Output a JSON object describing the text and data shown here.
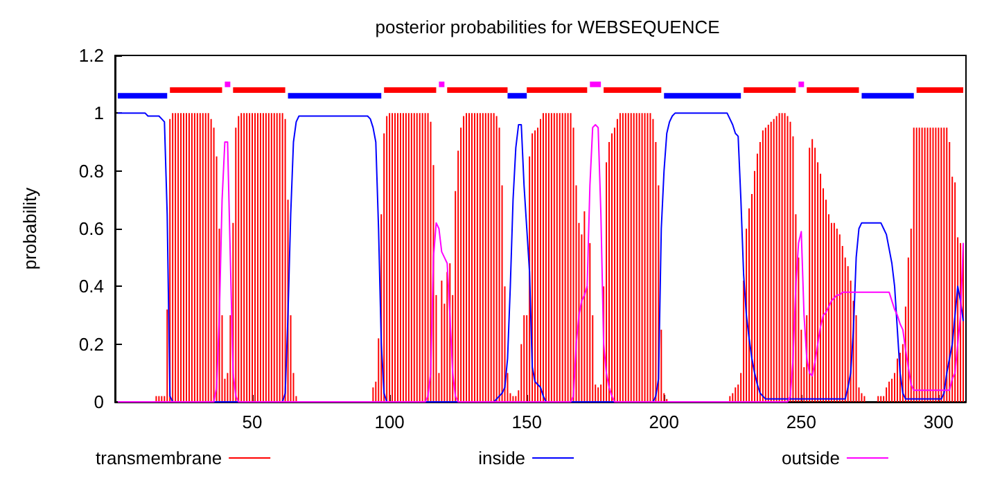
{
  "chart_data": {
    "type": "bar",
    "title": "posterior probabilities for WEBSEQUENCE",
    "ylabel": "probability",
    "x": [
      1,
      2,
      3,
      4,
      5,
      6,
      7,
      8,
      9,
      10,
      11,
      12,
      13,
      14,
      15,
      16,
      17,
      18,
      19,
      20,
      21,
      22,
      23,
      24,
      25,
      26,
      27,
      28,
      29,
      30,
      31,
      32,
      33,
      34,
      35,
      36,
      37,
      38,
      39,
      40,
      41,
      42,
      43,
      44,
      45,
      46,
      47,
      48,
      49,
      50,
      51,
      52,
      53,
      54,
      55,
      56,
      57,
      58,
      59,
      60,
      61,
      62,
      63,
      64,
      65,
      66,
      67,
      68,
      69,
      70,
      71,
      72,
      73,
      74,
      75,
      76,
      77,
      78,
      79,
      80,
      81,
      82,
      83,
      84,
      85,
      86,
      87,
      88,
      89,
      90,
      91,
      92,
      93,
      94,
      95,
      96,
      97,
      98,
      99,
      100,
      101,
      102,
      103,
      104,
      105,
      106,
      107,
      108,
      109,
      110,
      111,
      112,
      113,
      114,
      115,
      116,
      117,
      118,
      119,
      120,
      121,
      122,
      123,
      124,
      125,
      126,
      127,
      128,
      129,
      130,
      131,
      132,
      133,
      134,
      135,
      136,
      137,
      138,
      139,
      140,
      141,
      142,
      143,
      144,
      145,
      146,
      147,
      148,
      149,
      150,
      151,
      152,
      153,
      154,
      155,
      156,
      157,
      158,
      159,
      160,
      161,
      162,
      163,
      164,
      165,
      166,
      167,
      168,
      169,
      170,
      171,
      172,
      173,
      174,
      175,
      176,
      177,
      178,
      179,
      180,
      181,
      182,
      183,
      184,
      185,
      186,
      187,
      188,
      189,
      190,
      191,
      192,
      193,
      194,
      195,
      196,
      197,
      198,
      199,
      200,
      201,
      202,
      203,
      204,
      205,
      206,
      207,
      208,
      209,
      210,
      211,
      212,
      213,
      214,
      215,
      216,
      217,
      218,
      219,
      220,
      221,
      222,
      223,
      224,
      225,
      226,
      227,
      228,
      229,
      230,
      231,
      232,
      233,
      234,
      235,
      236,
      237,
      238,
      239,
      240,
      241,
      242,
      243,
      244,
      245,
      246,
      247,
      248,
      249,
      250,
      251,
      252,
      253,
      254,
      255,
      256,
      257,
      258,
      259,
      260,
      261,
      262,
      263,
      264,
      265,
      266,
      267,
      268,
      269,
      270,
      271,
      272,
      273,
      274,
      275,
      276,
      277,
      278,
      279,
      280,
      281,
      282,
      283,
      284,
      285,
      286,
      287,
      288,
      289,
      290,
      291,
      292,
      293,
      294,
      295,
      296,
      297,
      298,
      299,
      300,
      301,
      302,
      303,
      304,
      305,
      306,
      307,
      308,
      309
    ],
    "series": [
      {
        "name": "transmembrane",
        "color": "#ff0000",
        "values": [
          0,
          0,
          0,
          0,
          0,
          0,
          0,
          0,
          0,
          0,
          0,
          0,
          0,
          0,
          0.02,
          0.02,
          0.02,
          0.02,
          0.32,
          0.98,
          1,
          1,
          1,
          1,
          1,
          1,
          1,
          1,
          1,
          1,
          1,
          1,
          1,
          1,
          0.98,
          0.95,
          0.85,
          0.6,
          0.3,
          0.08,
          0.1,
          0.3,
          0.62,
          0.95,
          0.99,
          1,
          1,
          1,
          1,
          1,
          1,
          1,
          1,
          1,
          1,
          1,
          1,
          1,
          1,
          1,
          1,
          0.98,
          0.7,
          0.3,
          0.1,
          0.02,
          0,
          0,
          0,
          0,
          0,
          0,
          0,
          0,
          0,
          0,
          0,
          0,
          0,
          0,
          0,
          0,
          0,
          0,
          0,
          0,
          0,
          0,
          0,
          0,
          0,
          0,
          0,
          0.05,
          0.07,
          0.22,
          0.65,
          0.93,
          0.99,
          1,
          1,
          1,
          1,
          1,
          1,
          1,
          1,
          1,
          1,
          1,
          1,
          1,
          1,
          1,
          0.97,
          0.82,
          0.37,
          0.1,
          0.42,
          0.34,
          0.45,
          0.48,
          0.37,
          0.73,
          0.87,
          0.95,
          0.99,
          1,
          1,
          1,
          1,
          1,
          1,
          1,
          1,
          1,
          1,
          1,
          0.99,
          0.95,
          0.75,
          0.4,
          0.1,
          0.03,
          0.02,
          0.02,
          0.04,
          0.2,
          0.3,
          0.3,
          0.85,
          0.93,
          0.94,
          0.95,
          0.98,
          1,
          1,
          1,
          1,
          1,
          1,
          1,
          1,
          1,
          1,
          1,
          0.95,
          0.75,
          0.62,
          0.58,
          0.66,
          0.4,
          0.55,
          0.3,
          0.06,
          0.05,
          0.06,
          0.4,
          0.83,
          0.9,
          0.93,
          0.95,
          0.98,
          1,
          1,
          1,
          1,
          1,
          1,
          1,
          1,
          1,
          1,
          1,
          1,
          0.98,
          0.9,
          0.75,
          0.25,
          0.03,
          0.01,
          0,
          0,
          0,
          0,
          0,
          0,
          0,
          0,
          0,
          0,
          0,
          0,
          0,
          0,
          0,
          0,
          0,
          0,
          0,
          0,
          0,
          0,
          0.02,
          0.03,
          0.05,
          0.06,
          0.1,
          0.42,
          0.6,
          0.67,
          0.72,
          0.8,
          0.86,
          0.9,
          0.94,
          0.95,
          0.96,
          0.97,
          0.98,
          0.99,
          1,
          1,
          1,
          0.99,
          0.97,
          0.92,
          0.65,
          0.5,
          0.25,
          0.12,
          0.3,
          0.88,
          0.91,
          0.88,
          0.83,
          0.79,
          0.74,
          0.7,
          0.65,
          0.62,
          0.62,
          0.6,
          0.58,
          0.54,
          0.5,
          0.47,
          0.42,
          0.35,
          0.3,
          0.05,
          0.03,
          0.02,
          0,
          0,
          0,
          0,
          0.02,
          0.02,
          0.02,
          0.05,
          0.07,
          0.08,
          0.1,
          0.15,
          0.17,
          0.2,
          0.33,
          0.5,
          0.6,
          0.95,
          0.95,
          0.95,
          0.95,
          0.95,
          0.95,
          0.95,
          0.95,
          0.95,
          0.95,
          0.95,
          0.95,
          0.95,
          0.9,
          0.78,
          0.76,
          0.57,
          0.55,
          0.55
        ]
      },
      {
        "name": "inside",
        "type": "line",
        "color": "#0000ff",
        "values": [
          1,
          1,
          1,
          1,
          1,
          1,
          1,
          1,
          1,
          1,
          1,
          0.99,
          0.99,
          0.99,
          0.99,
          0.99,
          0.98,
          0.97,
          0.65,
          0.02,
          0,
          0,
          0,
          0,
          0,
          0,
          0,
          0,
          0,
          0,
          0,
          0,
          0,
          0,
          0,
          0,
          0,
          0,
          0,
          0,
          0,
          0,
          0,
          0,
          0,
          0,
          0,
          0,
          0,
          0,
          0,
          0,
          0,
          0,
          0,
          0,
          0,
          0,
          0,
          0,
          0,
          0.03,
          0.3,
          0.65,
          0.9,
          0.97,
          0.99,
          0.99,
          0.99,
          0.99,
          0.99,
          0.99,
          0.99,
          0.99,
          0.99,
          0.99,
          0.99,
          0.99,
          0.99,
          0.99,
          0.99,
          0.99,
          0.99,
          0.99,
          0.99,
          0.99,
          0.99,
          0.99,
          0.99,
          0.99,
          0.99,
          0.99,
          0.98,
          0.95,
          0.9,
          0.6,
          0.2,
          0.03,
          0,
          0,
          0,
          0,
          0,
          0,
          0,
          0,
          0,
          0,
          0,
          0,
          0,
          0,
          0,
          0,
          0,
          0,
          0,
          0,
          0,
          0,
          0,
          0,
          0,
          0,
          0,
          0,
          0,
          0,
          0,
          0,
          0,
          0,
          0,
          0,
          0,
          0,
          0,
          0,
          0.01,
          0.02,
          0.03,
          0.05,
          0.15,
          0.4,
          0.7,
          0.88,
          0.96,
          0.96,
          0.75,
          0.6,
          0.45,
          0.12,
          0.07,
          0.06,
          0.05,
          0.02,
          0,
          0,
          0,
          0,
          0,
          0,
          0,
          0,
          0,
          0,
          0,
          0,
          0,
          0,
          0,
          0,
          0,
          0,
          0,
          0,
          0,
          0,
          0,
          0,
          0,
          0,
          0,
          0,
          0,
          0,
          0,
          0,
          0,
          0,
          0,
          0,
          0,
          0,
          0,
          0,
          0.02,
          0.08,
          0.6,
          0.8,
          0.93,
          0.97,
          0.99,
          1,
          1,
          1,
          1,
          1,
          1,
          1,
          1,
          1,
          1,
          1,
          1,
          1,
          1,
          1,
          1,
          1,
          1,
          1,
          1,
          0.98,
          0.96,
          0.93,
          0.92,
          0.7,
          0.44,
          0.3,
          0.22,
          0.15,
          0.1,
          0.06,
          0.03,
          0.02,
          0.01,
          0.01,
          0.01,
          0.01,
          0.01,
          0.01,
          0.01,
          0.01,
          0.01,
          0.01,
          0.01,
          0.01,
          0.01,
          0.01,
          0.01,
          0.01,
          0.01,
          0.01,
          0.01,
          0.01,
          0.01,
          0.01,
          0.01,
          0.01,
          0.01,
          0.01,
          0.01,
          0.01,
          0.01,
          0.01,
          0.05,
          0.1,
          0.25,
          0.5,
          0.6,
          0.62,
          0.62,
          0.62,
          0.62,
          0.62,
          0.62,
          0.62,
          0.62,
          0.6,
          0.58,
          0.53,
          0.48,
          0.4,
          0.25,
          0.1,
          0.03,
          0.01,
          0.01,
          0.01,
          0.01,
          0.01,
          0.01,
          0.01,
          0.01,
          0.01,
          0.01,
          0.01,
          0.01,
          0.01,
          0.01,
          0.03,
          0.1,
          0.15,
          0.2,
          0.3,
          0.4,
          0.35,
          0.28
        ]
      },
      {
        "name": "outside",
        "type": "line",
        "color": "#ff00ff",
        "values": [
          0,
          0,
          0,
          0,
          0,
          0,
          0,
          0,
          0,
          0,
          0,
          0,
          0,
          0,
          0,
          0,
          0,
          0,
          0,
          0,
          0,
          0,
          0,
          0,
          0,
          0,
          0,
          0,
          0,
          0,
          0,
          0,
          0,
          0,
          0,
          0,
          0.05,
          0.3,
          0.7,
          0.9,
          0.9,
          0.5,
          0.1,
          0.02,
          0,
          0,
          0,
          0,
          0,
          0,
          0,
          0,
          0,
          0,
          0,
          0,
          0,
          0,
          0,
          0,
          0,
          0,
          0,
          0,
          0,
          0,
          0,
          0,
          0,
          0,
          0,
          0,
          0,
          0,
          0,
          0,
          0,
          0,
          0,
          0,
          0,
          0,
          0,
          0,
          0,
          0,
          0,
          0,
          0,
          0,
          0,
          0,
          0,
          0,
          0,
          0,
          0,
          0,
          0,
          0,
          0,
          0,
          0,
          0,
          0,
          0,
          0,
          0,
          0,
          0,
          0,
          0,
          0,
          0.02,
          0.1,
          0.5,
          0.62,
          0.6,
          0.52,
          0.5,
          0.48,
          0.3,
          0.1,
          0.02,
          0,
          0,
          0,
          0,
          0,
          0,
          0,
          0,
          0,
          0,
          0,
          0,
          0,
          0,
          0,
          0,
          0,
          0,
          0,
          0,
          0,
          0,
          0,
          0,
          0,
          0,
          0,
          0,
          0,
          0,
          0,
          0,
          0,
          0,
          0,
          0,
          0,
          0,
          0,
          0,
          0,
          0,
          0.02,
          0.2,
          0.3,
          0.35,
          0.37,
          0.4,
          0.75,
          0.95,
          0.96,
          0.95,
          0.65,
          0.2,
          0.1,
          0.05,
          0.02,
          0,
          0,
          0,
          0,
          0,
          0,
          0,
          0,
          0,
          0,
          0,
          0,
          0,
          0,
          0,
          0,
          0,
          0,
          0,
          0,
          0,
          0,
          0,
          0,
          0,
          0,
          0,
          0,
          0,
          0,
          0,
          0,
          0,
          0,
          0,
          0,
          0,
          0,
          0,
          0,
          0,
          0,
          0,
          0,
          0,
          0,
          0,
          0,
          0,
          0,
          0,
          0,
          0,
          0,
          0,
          0,
          0,
          0,
          0,
          0,
          0,
          0,
          0,
          0,
          0.02,
          0.15,
          0.4,
          0.55,
          0.59,
          0.3,
          0.15,
          0.1,
          0.09,
          0.14,
          0.2,
          0.26,
          0.3,
          0.31,
          0.33,
          0.35,
          0.36,
          0.37,
          0.37,
          0.38,
          0.38,
          0.38,
          0.38,
          0.38,
          0.38,
          0.38,
          0.38,
          0.38,
          0.38,
          0.38,
          0.38,
          0.38,
          0.38,
          0.38,
          0.38,
          0.38,
          0.38,
          0.35,
          0.32,
          0.3,
          0.27,
          0.25,
          0.18,
          0.12,
          0.06,
          0.04,
          0.04,
          0.04,
          0.04,
          0.04,
          0.04,
          0.04,
          0.04,
          0.04,
          0.04,
          0.04,
          0.04,
          0.04,
          0.04,
          0.08,
          0.1,
          0.2,
          0.3,
          0.55
        ]
      },
      {
        "type": "line",
        "color": "#0000ff",
        "values": [
          1.06,
          1.06,
          1.06,
          1.06,
          1.06,
          1.06,
          1.06,
          1.06,
          1.06,
          1.06,
          1.06,
          1.06,
          1.06,
          1.06,
          1.06,
          1.06,
          1.06,
          1.06,
          1.06,
          null,
          null,
          null,
          null,
          null,
          null,
          null,
          null,
          null,
          null,
          null,
          null,
          null,
          null,
          null,
          null,
          null,
          null,
          null,
          null,
          null,
          null,
          null,
          null,
          null,
          null,
          null,
          null,
          null,
          null,
          null,
          null,
          null,
          null,
          null,
          null,
          null,
          null,
          null,
          null,
          null,
          null,
          null,
          1.06,
          1.06,
          1.06,
          1.06,
          1.06,
          1.06,
          1.06,
          1.06,
          1.06,
          1.06,
          1.06,
          1.06,
          1.06,
          1.06,
          1.06,
          1.06,
          1.06,
          1.06,
          1.06,
          1.06,
          1.06,
          1.06,
          1.06,
          1.06,
          1.06,
          1.06,
          1.06,
          1.06,
          1.06,
          1.06,
          1.06,
          1.06,
          1.06,
          1.06,
          1.06,
          null,
          null,
          null,
          null,
          null,
          null,
          null,
          null,
          null,
          null,
          null,
          null,
          null,
          null,
          null,
          null,
          null,
          null,
          null,
          null,
          null,
          null,
          null,
          null,
          null,
          null,
          null,
          null,
          null,
          null,
          null,
          null,
          null,
          null,
          null,
          null,
          null,
          null,
          null,
          null,
          null,
          null,
          null,
          null,
          null,
          1.06,
          1.06,
          1.06,
          1.06,
          1.06,
          1.06,
          1.06,
          1.06,
          null,
          null,
          null,
          null,
          null,
          null,
          null,
          null,
          null,
          null,
          null,
          null,
          null,
          null,
          null,
          null,
          null,
          null,
          null,
          null,
          null,
          null,
          null,
          null,
          null,
          null,
          null,
          null,
          null,
          null,
          null,
          null,
          null,
          null,
          null,
          null,
          null,
          null,
          null,
          null,
          null,
          null,
          null,
          null,
          null,
          null,
          null,
          null,
          null,
          1.06,
          1.06,
          1.06,
          1.06,
          1.06,
          1.06,
          1.06,
          1.06,
          1.06,
          1.06,
          1.06,
          1.06,
          1.06,
          1.06,
          1.06,
          1.06,
          1.06,
          1.06,
          1.06,
          1.06,
          1.06,
          1.06,
          1.06,
          1.06,
          1.06,
          1.06,
          1.06,
          1.06,
          1.06,
          null,
          null,
          null,
          null,
          null,
          null,
          null,
          null,
          null,
          null,
          null,
          null,
          null,
          null,
          null,
          null,
          null,
          null,
          null,
          null,
          null,
          null,
          null,
          null,
          null,
          null,
          null,
          null,
          null,
          null,
          null,
          null,
          null,
          null,
          null,
          null,
          null,
          null,
          null,
          null,
          null,
          null,
          null,
          1.06,
          1.06,
          1.06,
          1.06,
          1.06,
          1.06,
          1.06,
          1.06,
          1.06,
          1.06,
          1.06,
          1.06,
          1.06,
          1.06,
          1.06,
          1.06,
          1.06,
          1.06,
          1.06,
          1.06,
          null,
          null,
          null,
          null,
          null,
          null,
          null,
          null,
          null,
          null,
          null,
          null,
          null,
          null,
          null,
          null,
          null,
          null
        ]
      },
      {
        "type": "line",
        "color": "#ff0000",
        "values": [
          null,
          null,
          null,
          null,
          null,
          null,
          null,
          null,
          null,
          null,
          null,
          null,
          null,
          null,
          null,
          null,
          null,
          null,
          null,
          1.08,
          1.08,
          1.08,
          1.08,
          1.08,
          1.08,
          1.08,
          1.08,
          1.08,
          1.08,
          1.08,
          1.08,
          1.08,
          1.08,
          1.08,
          1.08,
          1.08,
          1.08,
          1.08,
          1.08,
          null,
          null,
          null,
          1.08,
          1.08,
          1.08,
          1.08,
          1.08,
          1.08,
          1.08,
          1.08,
          1.08,
          1.08,
          1.08,
          1.08,
          1.08,
          1.08,
          1.08,
          1.08,
          1.08,
          1.08,
          1.08,
          1.08,
          null,
          null,
          null,
          null,
          null,
          null,
          null,
          null,
          null,
          null,
          null,
          null,
          null,
          null,
          null,
          null,
          null,
          null,
          null,
          null,
          null,
          null,
          null,
          null,
          null,
          null,
          null,
          null,
          null,
          null,
          null,
          null,
          null,
          null,
          null,
          1.08,
          1.08,
          1.08,
          1.08,
          1.08,
          1.08,
          1.08,
          1.08,
          1.08,
          1.08,
          1.08,
          1.08,
          1.08,
          1.08,
          1.08,
          1.08,
          1.08,
          1.08,
          1.08,
          1.08,
          null,
          null,
          null,
          1.08,
          1.08,
          1.08,
          1.08,
          1.08,
          1.08,
          1.08,
          1.08,
          1.08,
          1.08,
          1.08,
          1.08,
          1.08,
          1.08,
          1.08,
          1.08,
          1.08,
          1.08,
          1.08,
          1.08,
          1.08,
          1.08,
          1.08,
          null,
          null,
          null,
          null,
          null,
          null,
          1.08,
          1.08,
          1.08,
          1.08,
          1.08,
          1.08,
          1.08,
          1.08,
          1.08,
          1.08,
          1.08,
          1.08,
          1.08,
          1.08,
          1.08,
          1.08,
          1.08,
          1.08,
          1.08,
          1.08,
          1.08,
          1.08,
          1.08,
          null,
          null,
          null,
          null,
          null,
          1.08,
          1.08,
          1.08,
          1.08,
          1.08,
          1.08,
          1.08,
          1.08,
          1.08,
          1.08,
          1.08,
          1.08,
          1.08,
          1.08,
          1.08,
          1.08,
          1.08,
          1.08,
          1.08,
          1.08,
          1.08,
          1.08,
          null,
          null,
          null,
          null,
          null,
          null,
          null,
          null,
          null,
          null,
          null,
          null,
          null,
          null,
          null,
          null,
          null,
          null,
          null,
          null,
          null,
          null,
          null,
          null,
          null,
          null,
          null,
          null,
          null,
          1.08,
          1.08,
          1.08,
          1.08,
          1.08,
          1.08,
          1.08,
          1.08,
          1.08,
          1.08,
          1.08,
          1.08,
          1.08,
          1.08,
          1.08,
          1.08,
          1.08,
          1.08,
          1.08,
          1.08,
          null,
          null,
          null,
          1.08,
          1.08,
          1.08,
          1.08,
          1.08,
          1.08,
          1.08,
          1.08,
          1.08,
          1.08,
          1.08,
          1.08,
          1.08,
          1.08,
          1.08,
          1.08,
          1.08,
          1.08,
          1.08,
          1.08,
          null,
          null,
          null,
          null,
          null,
          null,
          null,
          null,
          null,
          null,
          null,
          null,
          null,
          null,
          null,
          null,
          null,
          null,
          null,
          null,
          1.08,
          1.08,
          1.08,
          1.08,
          1.08,
          1.08,
          1.08,
          1.08,
          1.08,
          1.08,
          1.08,
          1.08,
          1.08,
          1.08,
          1.08,
          1.08,
          1.08,
          1.08
        ]
      },
      {
        "type": "line",
        "color": "#ff00ff",
        "values": [
          null,
          null,
          null,
          null,
          null,
          null,
          null,
          null,
          null,
          null,
          null,
          null,
          null,
          null,
          null,
          null,
          null,
          null,
          null,
          null,
          null,
          null,
          null,
          null,
          null,
          null,
          null,
          null,
          null,
          null,
          null,
          null,
          null,
          null,
          null,
          null,
          null,
          null,
          null,
          1.1,
          1.1,
          1.1,
          null,
          null,
          null,
          null,
          null,
          null,
          null,
          null,
          null,
          null,
          null,
          null,
          null,
          null,
          null,
          null,
          null,
          null,
          null,
          null,
          null,
          null,
          null,
          null,
          null,
          null,
          null,
          null,
          null,
          null,
          null,
          null,
          null,
          null,
          null,
          null,
          null,
          null,
          null,
          null,
          null,
          null,
          null,
          null,
          null,
          null,
          null,
          null,
          null,
          null,
          null,
          null,
          null,
          null,
          null,
          null,
          null,
          null,
          null,
          null,
          null,
          null,
          null,
          null,
          null,
          null,
          null,
          null,
          null,
          null,
          null,
          null,
          null,
          null,
          null,
          1.1,
          1.1,
          1.1,
          null,
          null,
          null,
          null,
          null,
          null,
          null,
          null,
          null,
          null,
          null,
          null,
          null,
          null,
          null,
          null,
          null,
          null,
          null,
          null,
          null,
          null,
          null,
          null,
          null,
          null,
          null,
          null,
          null,
          null,
          null,
          null,
          null,
          null,
          null,
          null,
          null,
          null,
          null,
          null,
          null,
          null,
          null,
          null,
          null,
          null,
          null,
          null,
          null,
          null,
          null,
          null,
          1.1,
          1.1,
          1.1,
          1.1,
          1.1,
          null,
          null,
          null,
          null,
          null,
          null,
          null,
          null,
          null,
          null,
          null,
          null,
          null,
          null,
          null,
          null,
          null,
          null,
          null,
          null,
          null,
          null,
          null,
          null,
          null,
          null,
          null,
          null,
          null,
          null,
          null,
          null,
          null,
          null,
          null,
          null,
          null,
          null,
          null,
          null,
          null,
          null,
          null,
          null,
          null,
          null,
          null,
          null,
          null,
          null,
          null,
          null,
          null,
          null,
          null,
          null,
          null,
          null,
          null,
          null,
          null,
          null,
          null,
          null,
          null,
          null,
          null,
          null,
          null,
          null,
          null,
          1.1,
          1.1,
          1.1,
          null,
          null,
          null,
          null,
          null,
          null,
          null,
          null,
          null,
          null,
          null,
          null,
          null,
          null,
          null,
          null,
          null,
          null,
          null,
          null,
          null,
          null,
          null,
          null,
          null,
          null,
          null,
          null,
          null,
          null,
          null,
          null,
          null,
          null,
          null,
          null,
          null,
          null,
          null,
          null,
          null,
          null,
          null,
          null,
          null,
          null,
          null,
          null,
          null,
          null,
          null,
          null,
          null,
          null,
          null,
          null,
          null,
          null
        ]
      }
    ],
    "xlim": [
      0,
      310
    ],
    "xticks": [
      50,
      100,
      150,
      200,
      250,
      300
    ],
    "ylim": [
      0,
      1.2
    ],
    "yticks": [
      0,
      0.2,
      0.4,
      0.6,
      0.8,
      1,
      1.2
    ],
    "grid": false,
    "legend": "bottom",
    "marker": "none",
    "line_style": "solid"
  }
}
